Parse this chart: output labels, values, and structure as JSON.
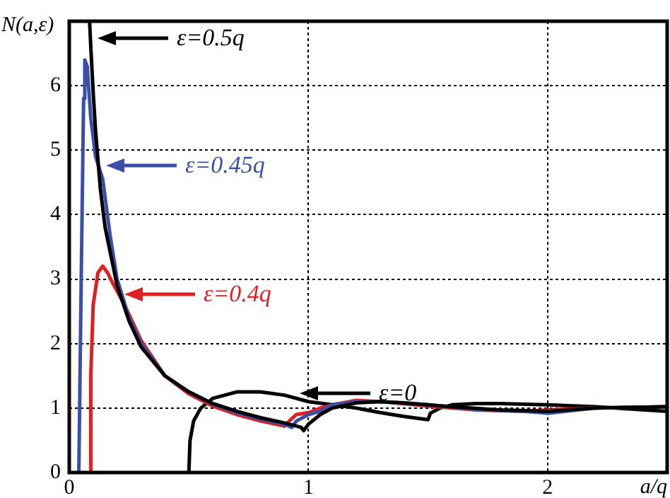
{
  "chart_data": {
    "type": "line",
    "xlabel": "a/q",
    "ylabel": "N(a,ε)",
    "xlim": [
      0,
      2.5
    ],
    "ylim": [
      0,
      7
    ],
    "xticks": [
      0,
      1,
      2
    ],
    "yticks": [
      0,
      1,
      2,
      3,
      4,
      5,
      6
    ],
    "grid": true,
    "legend": "top left",
    "marker": "none",
    "line_style": "solid",
    "series": [
      {
        "name": "ε=0.5q",
        "color": "#000000",
        "x": [
          0.085,
          0.09,
          0.1,
          0.11,
          0.13,
          0.15,
          0.2,
          0.25,
          0.3,
          0.4,
          0.5,
          0.6,
          0.7,
          0.8,
          0.9,
          0.97,
          0.98,
          1.0,
          1.05,
          1.1,
          1.2,
          1.3,
          1.4,
          1.5,
          1.6,
          1.8,
          2.0,
          2.2,
          2.5
        ],
        "values": [
          7,
          6.6,
          5.9,
          5.3,
          4.4,
          3.8,
          2.9,
          2.35,
          1.95,
          1.5,
          1.25,
          1.07,
          0.95,
          0.85,
          0.77,
          0.7,
          0.65,
          0.75,
          0.9,
          1.0,
          1.08,
          1.1,
          1.08,
          1.05,
          1.02,
          0.97,
          0.95,
          1.0,
          1.02
        ]
      },
      {
        "name": "ε=0.45q",
        "color": "#3a50a8",
        "x": [
          0.04,
          0.05,
          0.06,
          0.065,
          0.075,
          0.09,
          0.11,
          0.14,
          0.17,
          0.2,
          0.25,
          0.3,
          0.4,
          0.5,
          0.6,
          0.7,
          0.8,
          0.9,
          0.93,
          0.95,
          1.0,
          1.05,
          1.1,
          1.2,
          1.3,
          1.5,
          1.7,
          1.9,
          2.0,
          2.2,
          2.5
        ],
        "values": [
          0,
          3,
          5.8,
          6.4,
          6.3,
          5.5,
          4.9,
          4.55,
          3.7,
          3.0,
          2.4,
          2.0,
          1.5,
          1.25,
          1.06,
          0.93,
          0.83,
          0.75,
          0.7,
          0.8,
          0.9,
          0.95,
          1.05,
          1.1,
          1.1,
          1.05,
          0.98,
          0.95,
          0.92,
          1.0,
          1.02
        ]
      },
      {
        "name": "ε=0.4q",
        "color": "#e02020",
        "x": [
          0.09,
          0.09,
          0.1,
          0.12,
          0.14,
          0.16,
          0.18,
          0.225,
          0.25,
          0.3,
          0.4,
          0.5,
          0.6,
          0.7,
          0.8,
          0.9,
          0.92,
          0.95,
          1.0,
          1.05,
          1.1,
          1.2,
          1.3,
          1.5,
          1.7,
          1.9,
          2.0,
          2.2,
          2.5
        ],
        "values": [
          0,
          1.5,
          2.6,
          3.1,
          3.2,
          3.1,
          2.95,
          2.64,
          2.45,
          2.05,
          1.5,
          1.22,
          1.03,
          0.9,
          0.8,
          0.72,
          0.8,
          0.9,
          0.93,
          1.0,
          1.05,
          1.12,
          1.1,
          1.03,
          0.97,
          0.95,
          0.97,
          1.0,
          1.02
        ]
      },
      {
        "name": "ε=0",
        "color": "#000000",
        "x": [
          0.5,
          0.505,
          0.52,
          0.55,
          0.6,
          0.7,
          0.8,
          0.9,
          1.0,
          1.1,
          1.2,
          1.3,
          1.4,
          1.5,
          1.51,
          1.55,
          1.6,
          1.7,
          1.8,
          2.0,
          2.2,
          2.5
        ],
        "values": [
          0,
          0.5,
          0.8,
          1.0,
          1.15,
          1.25,
          1.25,
          1.2,
          1.1,
          1.05,
          1.0,
          0.93,
          0.87,
          0.82,
          0.92,
          1.0,
          1.05,
          1.07,
          1.07,
          1.05,
          1.02,
          0.95
        ]
      }
    ]
  }
}
